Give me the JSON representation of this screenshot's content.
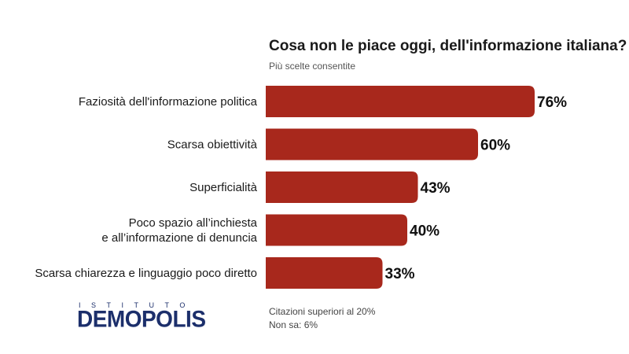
{
  "chart_data": {
    "type": "bar",
    "orientation": "horizontal",
    "title": "Cosa non le piace oggi, dell'informazione italiana?",
    "subtitle": "Più scelte consentite",
    "categories": [
      [
        "Faziosità dell'informazione politica"
      ],
      [
        "Scarsa obiettività"
      ],
      [
        "Superficialità"
      ],
      [
        "Poco spazio all’inchiesta",
        "e all’informazione di denuncia"
      ],
      [
        "Scarsa chiarezza e linguaggio poco diretto"
      ]
    ],
    "values": [
      76,
      60,
      43,
      40,
      33
    ],
    "value_labels": [
      "76%",
      "60%",
      "43%",
      "40%",
      "33%"
    ],
    "unit": "%",
    "xlim": [
      0,
      100
    ],
    "grid": false,
    "bar_color": "#a8281c"
  },
  "logo": {
    "top_text": "ISTITUTO",
    "main_text": "DEMOPOLIS",
    "color": "#1c2f6b"
  },
  "notes": {
    "line1": "Citazioni superiori al 20%",
    "line2": "Non sa: 6%"
  }
}
